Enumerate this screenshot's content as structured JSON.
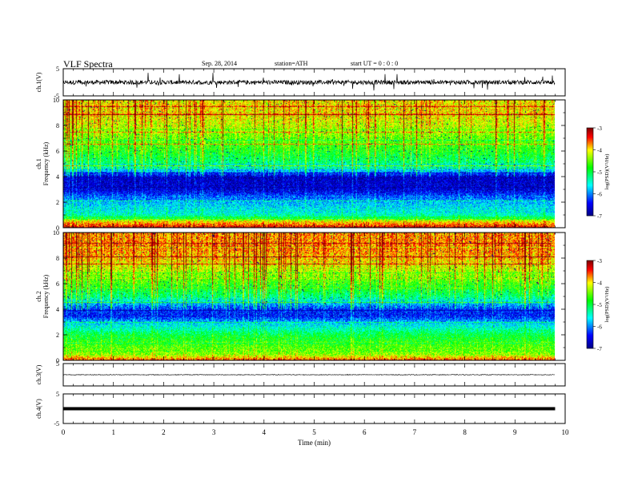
{
  "header": {
    "title": "VLF  Spectra",
    "date": "Sep. 28, 2014",
    "station": "station=ATH",
    "start_ut": "start  UT =   0 : 0 : 0"
  },
  "chart_data": [
    {
      "panel": "ch1-waveform",
      "type": "line",
      "ylabel": "ch.1(V)",
      "ylim": [
        -5,
        5
      ],
      "yticks": [
        5,
        -5
      ],
      "x_range_min": [
        0,
        9.8
      ],
      "baseline_V": 0,
      "noise_amplitude_V": 0.8,
      "spikes_V": [
        3,
        3.5,
        -3,
        2.5,
        3,
        -2.5,
        3.5
      ]
    },
    {
      "panel": "ch1-spectrogram",
      "type": "heatmap",
      "ylabel": "Frequency  (kHz)",
      "channel_label": "ch.1",
      "ylim": [
        0,
        10
      ],
      "yticks": [
        0,
        2,
        4,
        6,
        8,
        10
      ],
      "x_range_min": [
        0,
        9.8
      ],
      "colorbar": {
        "label": "log(PSD)(V²/Hz)",
        "range": [
          -7,
          -3
        ],
        "ticks": [
          -3,
          -4,
          -5,
          -6,
          -7
        ]
      },
      "profile_kHz": [
        {
          "f": 0,
          "logpsd": -3.2
        },
        {
          "f": 0.5,
          "logpsd": -4.0
        },
        {
          "f": 1,
          "logpsd": -5.4
        },
        {
          "f": 2,
          "logpsd": -5.8
        },
        {
          "f": 2.5,
          "logpsd": -6.2
        },
        {
          "f": 3,
          "logpsd": -6.6
        },
        {
          "f": 4,
          "logpsd": -6.7
        },
        {
          "f": 4.5,
          "logpsd": -5.8
        },
        {
          "f": 5,
          "logpsd": -5.2
        },
        {
          "f": 6,
          "logpsd": -4.8
        },
        {
          "f": 7,
          "logpsd": -4.5
        },
        {
          "f": 8,
          "logpsd": -4.2
        },
        {
          "f": 9,
          "logpsd": -4.0
        },
        {
          "f": 10,
          "logpsd": -4.0
        }
      ]
    },
    {
      "panel": "ch2-spectrogram",
      "type": "heatmap",
      "ylabel": "Frequency  (kHz)",
      "channel_label": "ch.2",
      "ylim": [
        0,
        10
      ],
      "yticks": [
        0,
        2,
        4,
        6,
        8,
        10
      ],
      "x_range_min": [
        0,
        9.8
      ],
      "colorbar": {
        "label": "log(PSD)(V²/Hz)",
        "range": [
          -7,
          -3
        ],
        "ticks": [
          -3,
          -4,
          -5,
          -6,
          -7
        ]
      },
      "profile_kHz": [
        {
          "f": 0,
          "logpsd": -3.5
        },
        {
          "f": 0.5,
          "logpsd": -4.4
        },
        {
          "f": 1,
          "logpsd": -4.6
        },
        {
          "f": 2,
          "logpsd": -5.0
        },
        {
          "f": 2.5,
          "logpsd": -5.4
        },
        {
          "f": 3,
          "logpsd": -5.8
        },
        {
          "f": 3.5,
          "logpsd": -6.4
        },
        {
          "f": 4,
          "logpsd": -6.3
        },
        {
          "f": 4.5,
          "logpsd": -5.8
        },
        {
          "f": 5,
          "logpsd": -5.2
        },
        {
          "f": 6,
          "logpsd": -4.7
        },
        {
          "f": 7,
          "logpsd": -4.3
        },
        {
          "f": 8,
          "logpsd": -3.9
        },
        {
          "f": 9,
          "logpsd": -3.7
        },
        {
          "f": 10,
          "logpsd": -3.8
        }
      ]
    },
    {
      "panel": "ch3-waveform",
      "type": "line",
      "ylabel": "ch.3(V)",
      "ylim": [
        -5,
        5
      ],
      "yticks": [
        5
      ],
      "x_range_min": [
        0,
        9.8
      ],
      "baseline_V": 0,
      "noise_amplitude_V": 0.15
    },
    {
      "panel": "ch4-waveform",
      "type": "line",
      "ylabel": "ch.4(V)",
      "ylim": [
        -5,
        5
      ],
      "yticks": [
        5,
        -5
      ],
      "x_range_min": [
        0,
        9.8
      ],
      "baseline_V": 0,
      "noise_amplitude_V": 0.3
    }
  ],
  "x_axis": {
    "label": "Time  (min)",
    "range": [
      0,
      10
    ],
    "ticks": [
      0,
      1,
      2,
      3,
      4,
      5,
      6,
      7,
      8,
      9,
      10
    ]
  },
  "colors": {
    "colormap": [
      "#000080",
      "#0000ff",
      "#00ffff",
      "#00ff00",
      "#ffff00",
      "#ff0000",
      "#800000"
    ],
    "trace": "#000000"
  }
}
